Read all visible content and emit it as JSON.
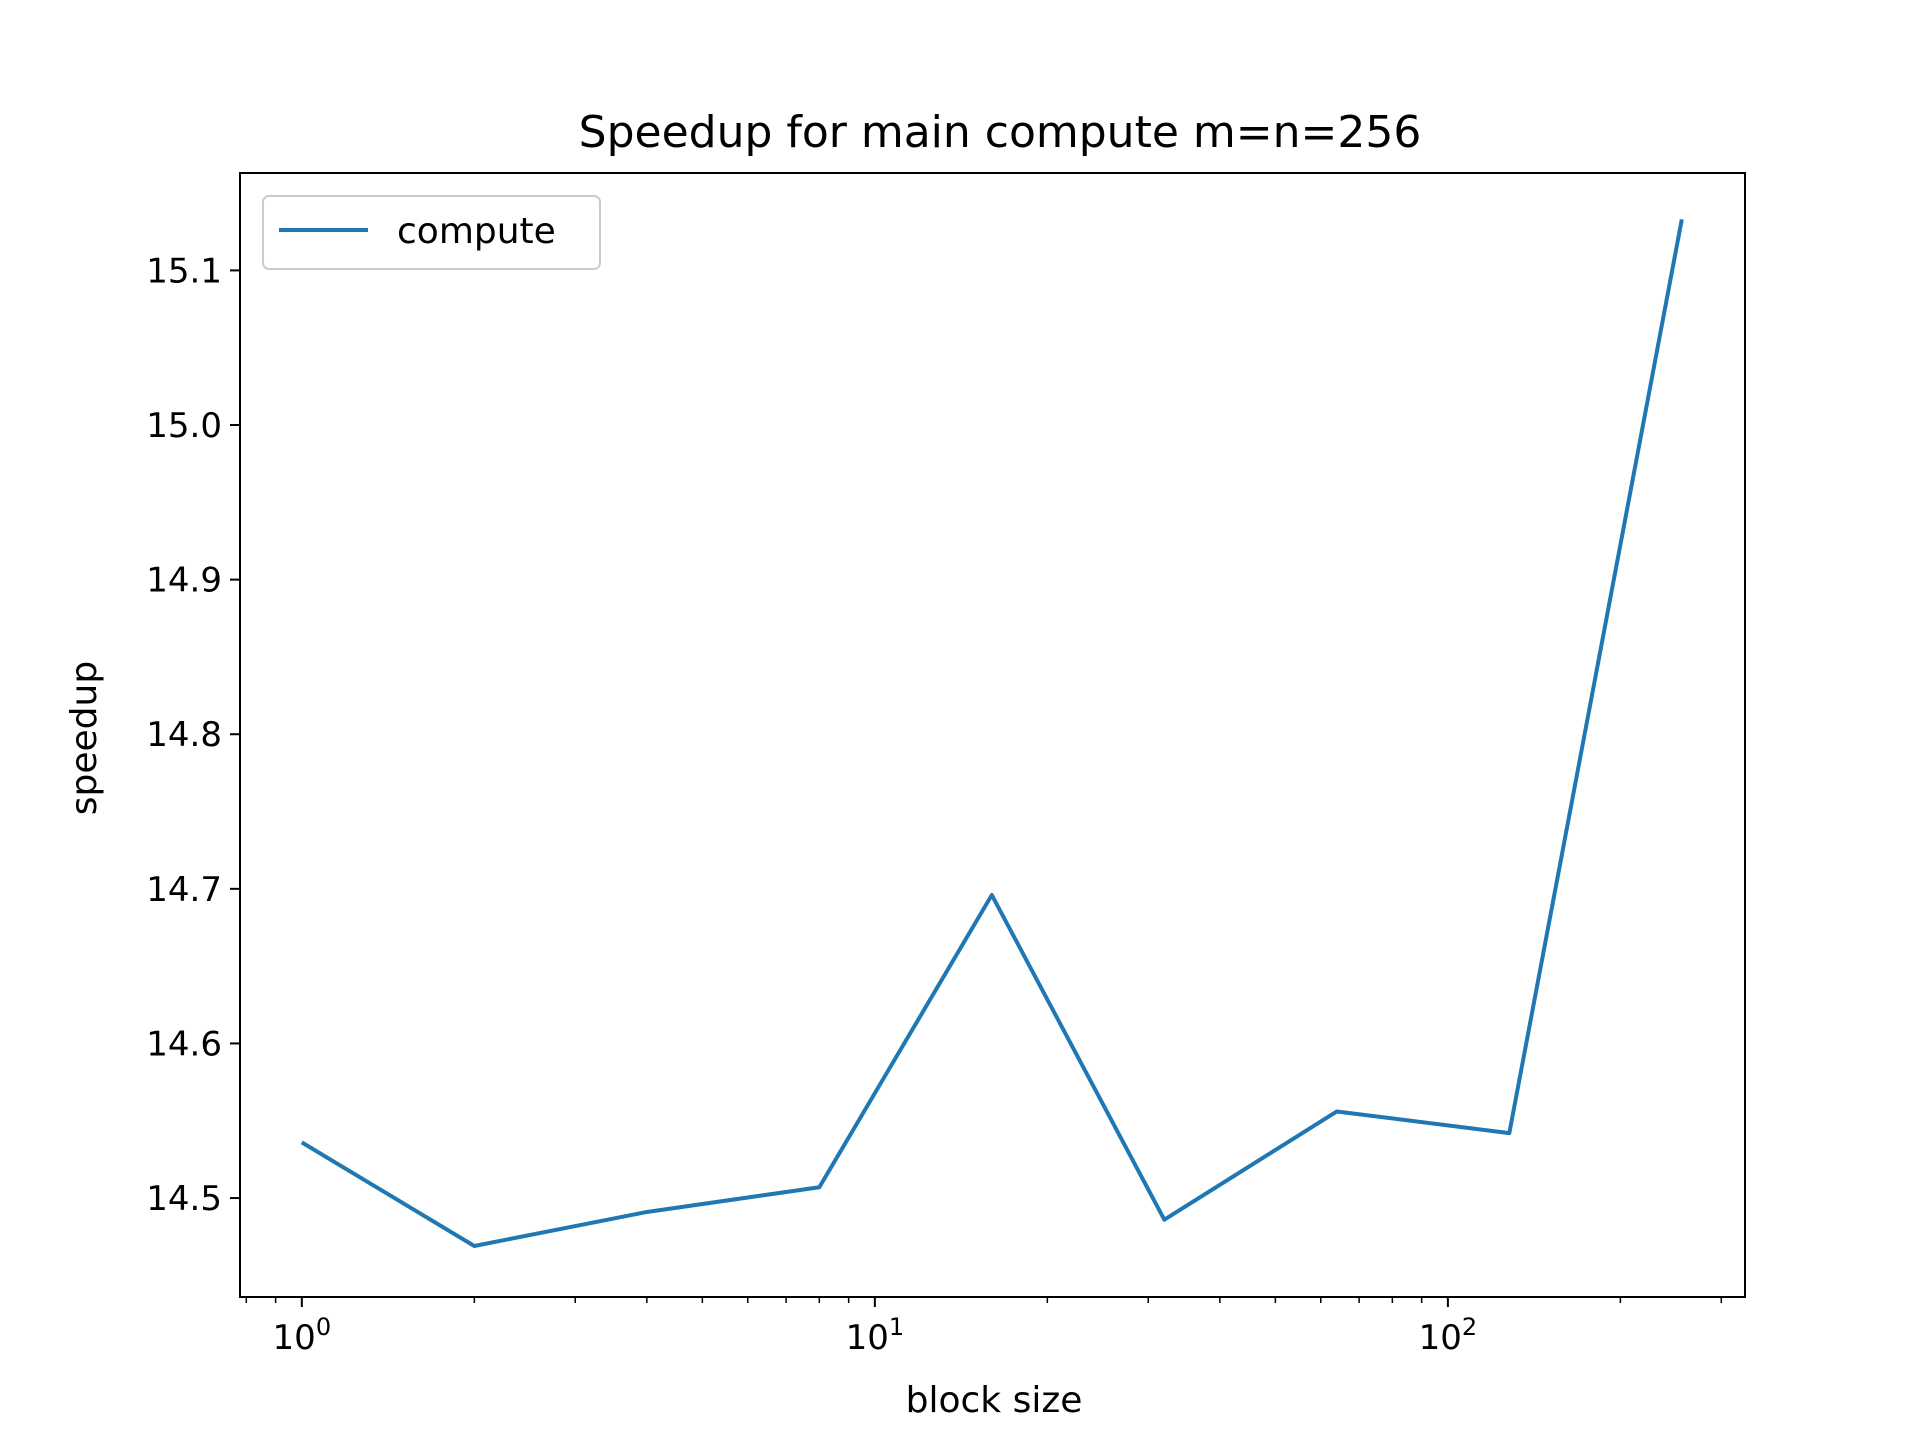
{
  "chart_data": {
    "type": "line",
    "title": "Speedup for main compute m=n=256",
    "xlabel": "block size",
    "ylabel": "speedup",
    "xscale": "log",
    "xlim": [
      0.78,
      330
    ],
    "ylim": [
      14.436,
      15.163
    ],
    "x_tick_labels": [
      {
        "base": "10",
        "exp": "0",
        "value": 1
      },
      {
        "base": "10",
        "exp": "1",
        "value": 10
      },
      {
        "base": "10",
        "exp": "2",
        "value": 100
      }
    ],
    "y_ticks": [
      14.5,
      14.6,
      14.7,
      14.8,
      14.9,
      15.0,
      15.1
    ],
    "y_tick_labels": [
      "14.5",
      "14.6",
      "14.7",
      "14.8",
      "14.9",
      "15.0",
      "15.1"
    ],
    "grid": false,
    "legend_position": "top-left",
    "series": [
      {
        "name": "compute",
        "color": "#1f77b4",
        "x": [
          1,
          2,
          4,
          8,
          16,
          32,
          64,
          128,
          256
        ],
        "y": [
          14.536,
          14.469,
          14.491,
          14.507,
          14.696,
          14.486,
          14.556,
          14.542,
          15.133
        ]
      }
    ]
  }
}
